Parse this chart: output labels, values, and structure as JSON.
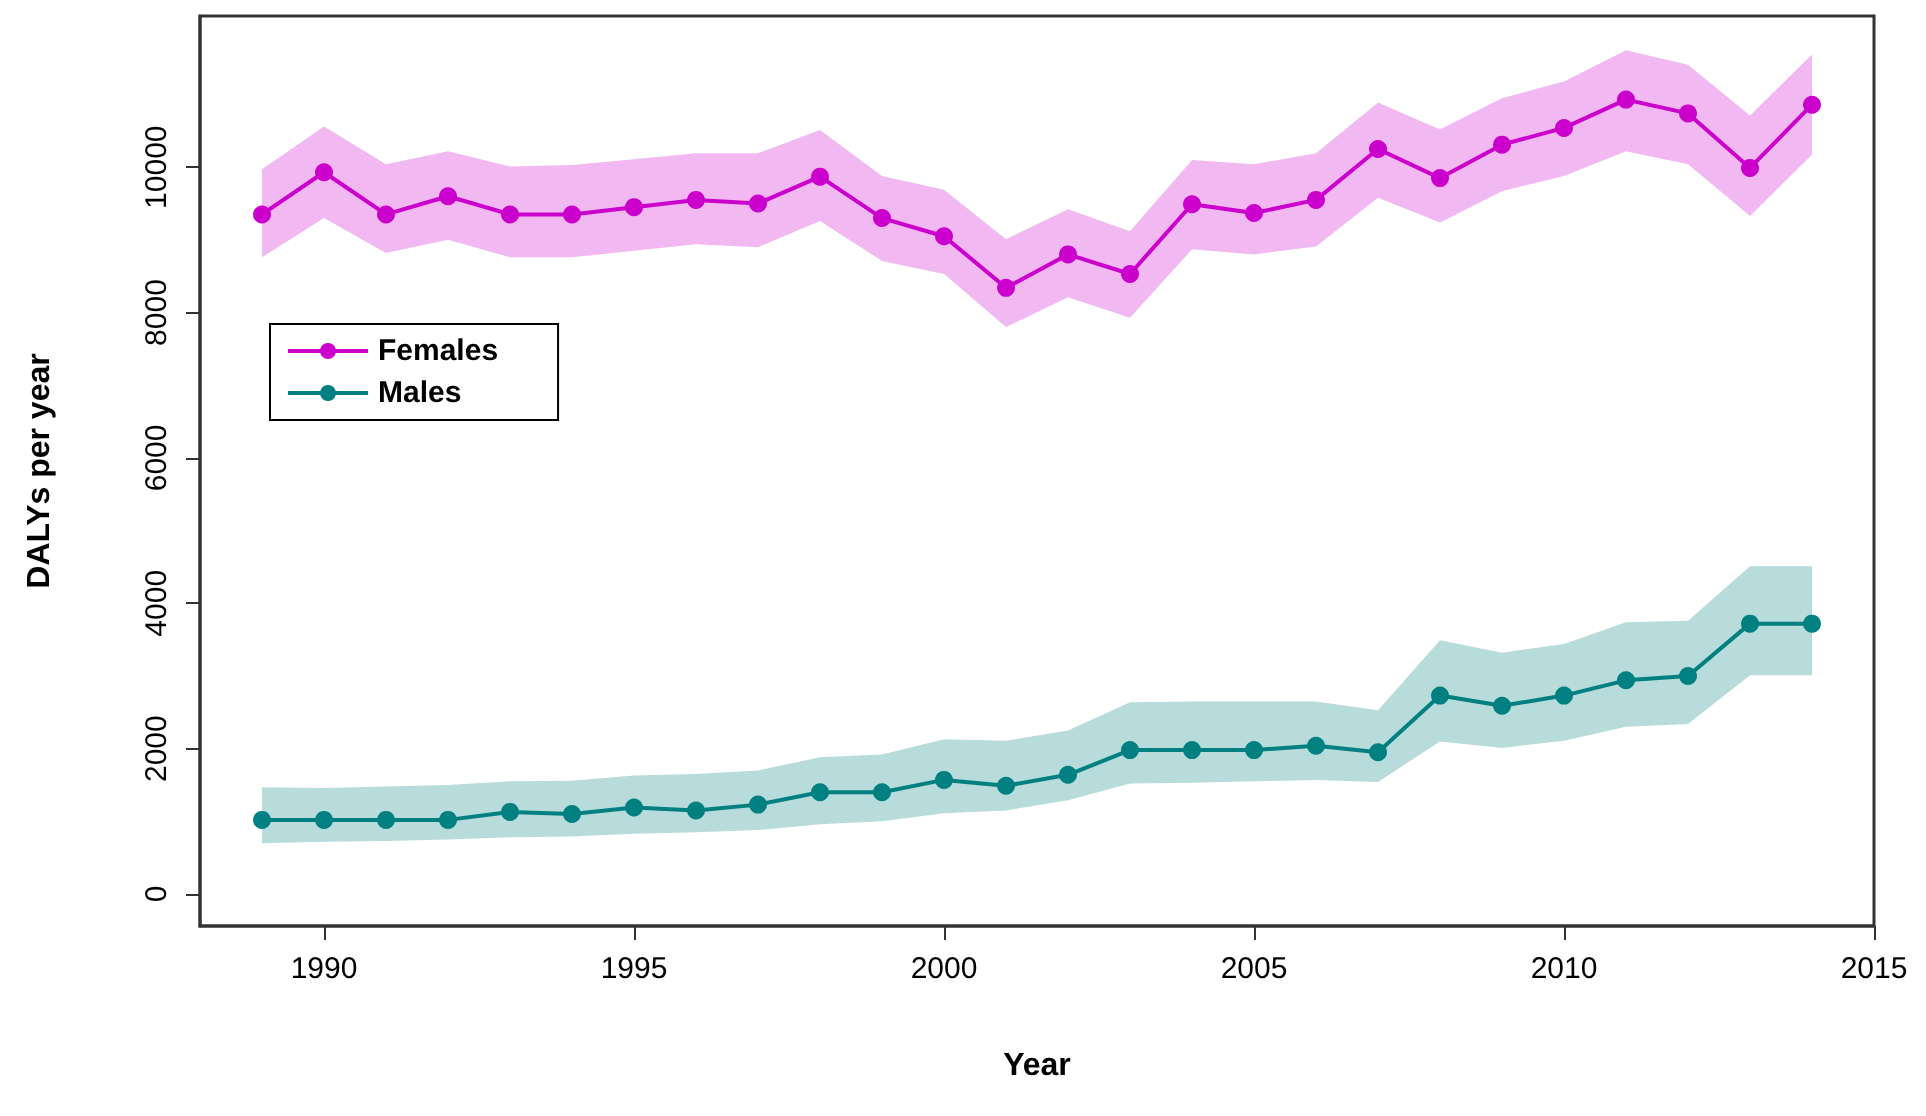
{
  "chart_data": {
    "type": "line",
    "xlabel": "Year",
    "ylabel": "DALYs per year",
    "x": [
      1989,
      1990,
      1991,
      1992,
      1993,
      1994,
      1995,
      1996,
      1997,
      1998,
      1999,
      2000,
      2001,
      2002,
      2003,
      2004,
      2005,
      2006,
      2007,
      2008,
      2009,
      2010,
      2011,
      2012,
      2013,
      2014
    ],
    "series": [
      {
        "name": "Females",
        "color": "#cc00cc",
        "values": [
          9350,
          9930,
          9350,
          9600,
          9350,
          9350,
          9450,
          9550,
          9500,
          9870,
          9300,
          9050,
          8340,
          8800,
          8530,
          9490,
          9370,
          9550,
          10250,
          9850,
          10310,
          10540,
          10930,
          10740,
          9990,
          10860
        ],
        "lower": [
          8760,
          9300,
          8820,
          9000,
          8760,
          8760,
          8850,
          8940,
          8900,
          9260,
          8710,
          8530,
          7800,
          8210,
          7930,
          8870,
          8800,
          8910,
          9580,
          9240,
          9670,
          9880,
          10220,
          10040,
          9330,
          10170
        ],
        "upper": [
          9970,
          10560,
          10040,
          10220,
          10010,
          10030,
          10110,
          10190,
          10190,
          10510,
          9880,
          9690,
          9010,
          9420,
          9120,
          10100,
          10040,
          10190,
          10890,
          10520,
          10950,
          11180,
          11610,
          11410,
          10710,
          11550
        ]
      },
      {
        "name": "Males",
        "color": "#008080",
        "values": [
          1020,
          1020,
          1020,
          1020,
          1130,
          1100,
          1190,
          1150,
          1230,
          1400,
          1400,
          1570,
          1490,
          1640,
          1980,
          1980,
          1980,
          2040,
          1950,
          2730,
          2590,
          2730,
          2940,
          3000,
          3720,
          3720
        ],
        "lower": [
          700,
          720,
          730,
          750,
          780,
          790,
          830,
          850,
          880,
          960,
          1000,
          1110,
          1150,
          1290,
          1520,
          1530,
          1550,
          1570,
          1540,
          2100,
          2010,
          2110,
          2300,
          2340,
          3010,
          3010
        ],
        "upper": [
          1470,
          1460,
          1480,
          1500,
          1550,
          1560,
          1630,
          1650,
          1700,
          1880,
          1920,
          2130,
          2110,
          2250,
          2640,
          2650,
          2650,
          2650,
          2530,
          3490,
          3320,
          3440,
          3740,
          3760,
          4510,
          4510
        ]
      }
    ],
    "xlim": [
      1988,
      2015
    ],
    "xticks": [
      1990,
      1995,
      2000,
      2005,
      2010,
      2015
    ],
    "ylim": [
      -440,
      12080
    ],
    "yticks": [
      0,
      2000,
      4000,
      6000,
      8000,
      10000
    ],
    "grid": false,
    "legend": "left",
    "marker": "circle",
    "line_style": "solid"
  }
}
